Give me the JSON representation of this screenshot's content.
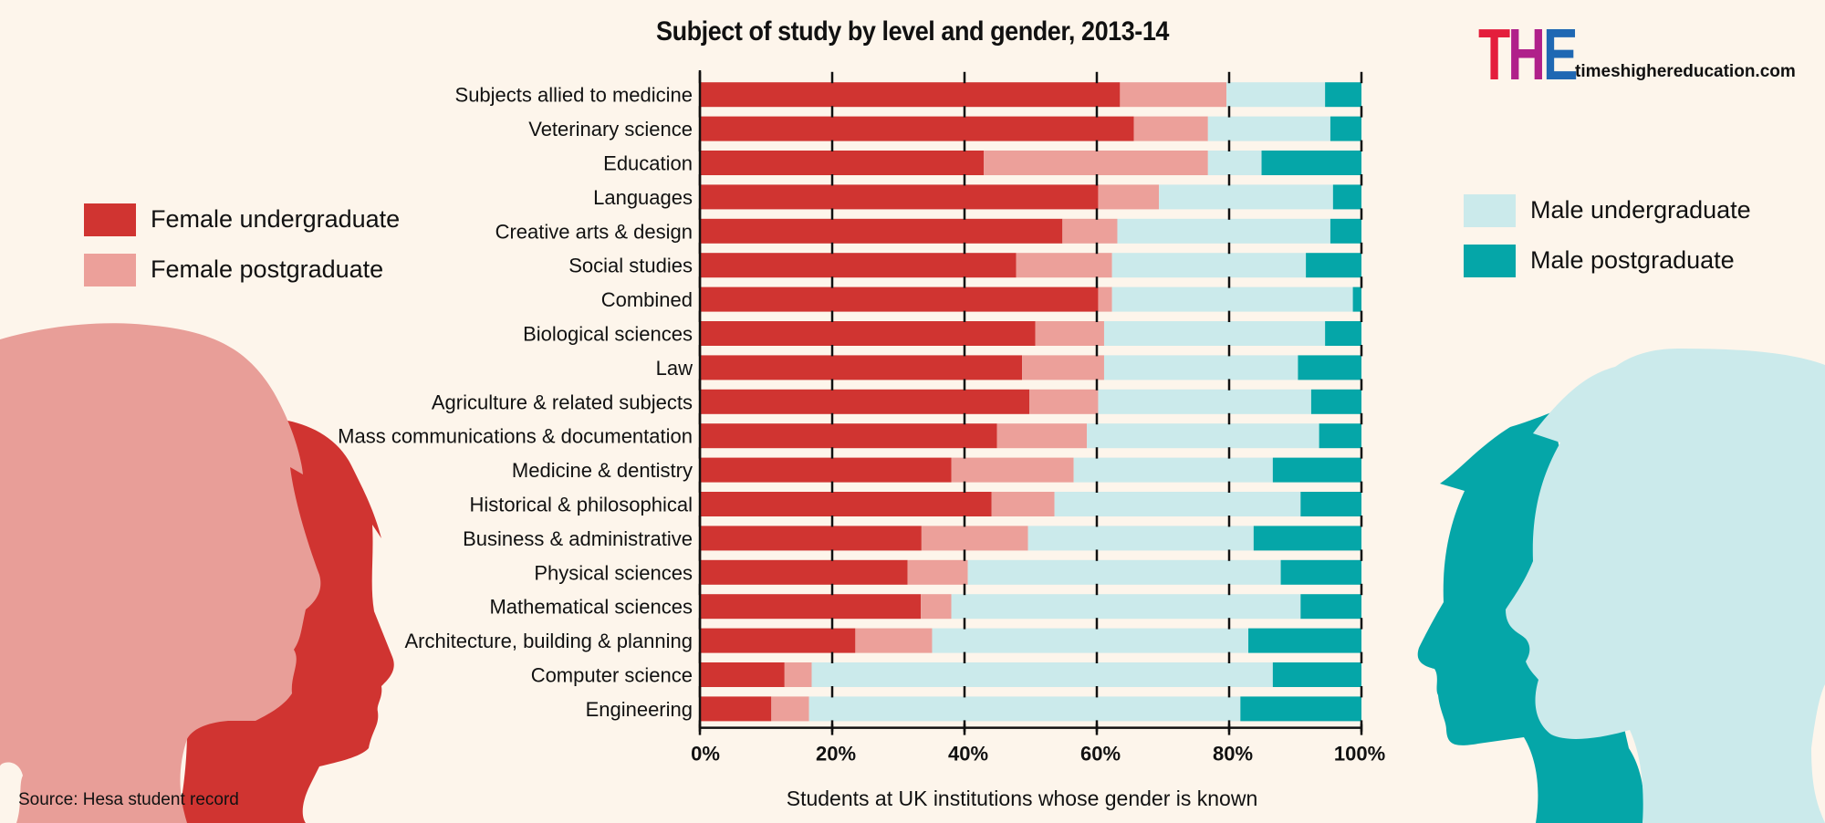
{
  "chart_data": {
    "type": "bar",
    "orientation": "horizontal",
    "stacked": true,
    "normalized": true,
    "title": "Subject of study by level and gender, 2013-14",
    "xlabel": "Students at UK institutions whose gender is known",
    "ylabel": "",
    "xlim": [
      0,
      100
    ],
    "x_ticks": [
      "0%",
      "20%",
      "40%",
      "60%",
      "80%",
      "100%"
    ],
    "grid": true,
    "legend_placement": "left and right",
    "categories": [
      "Subjects allied to medicine",
      "Veterinary science",
      "Education",
      "Languages",
      "Creative arts & design",
      "Social studies",
      "Combined",
      "Biological sciences",
      "Law",
      "Agriculture & related subjects",
      "Mass communications & documentation",
      "Medicine & dentistry",
      "Historical & philosophical",
      "Business & administrative",
      "Physical sciences",
      "Mathematical sciences",
      "Architecture, building & planning",
      "Computer science",
      "Engineering"
    ],
    "series": [
      {
        "name": "Female undergraduate",
        "color": "#d03431",
        "values": [
          63.5,
          65.6,
          42.9,
          60.2,
          54.8,
          47.8,
          60.2,
          50.7,
          48.7,
          49.8,
          44.9,
          38.0,
          44.1,
          33.5,
          31.4,
          33.4,
          23.5,
          12.8,
          10.8
        ]
      },
      {
        "name": "Female postgraduate",
        "color": "#eca09a",
        "values": [
          16.1,
          11.2,
          33.9,
          9.2,
          8.3,
          14.5,
          2.1,
          10.4,
          12.4,
          10.4,
          13.6,
          18.5,
          9.5,
          16.1,
          9.1,
          4.6,
          11.6,
          4.1,
          5.7
        ]
      },
      {
        "name": "Male undergraduate",
        "color": "#cbeaeb",
        "values": [
          14.9,
          18.5,
          8.1,
          26.3,
          32.2,
          29.3,
          36.4,
          33.4,
          29.3,
          32.2,
          35.1,
          30.1,
          37.2,
          34.1,
          47.3,
          52.8,
          47.8,
          69.7,
          65.2
        ]
      },
      {
        "name": "Male postgraduate",
        "color": "#05a6a8",
        "values": [
          5.5,
          4.7,
          15.1,
          4.3,
          4.7,
          8.4,
          1.3,
          5.5,
          9.6,
          7.6,
          6.4,
          13.4,
          9.2,
          16.3,
          12.2,
          9.2,
          17.1,
          13.4,
          18.3
        ]
      }
    ],
    "source": "Source: Hesa student record"
  },
  "branding": {
    "logo_letters": [
      {
        "char": "T",
        "color": "#e41e3c"
      },
      {
        "char": "H",
        "color": "#b0208a"
      },
      {
        "char": "E",
        "color": "#1f68b3"
      }
    ],
    "site": "timeshighereducation.com"
  },
  "legend_left": [
    {
      "label": "Female undergraduate",
      "color": "#d03431"
    },
    {
      "label": "Female postgraduate",
      "color": "#eca09a"
    }
  ],
  "legend_right": [
    {
      "label": "Male undergraduate",
      "color": "#cbeaeb"
    },
    {
      "label": "Male postgraduate",
      "color": "#05a6a8"
    }
  ]
}
